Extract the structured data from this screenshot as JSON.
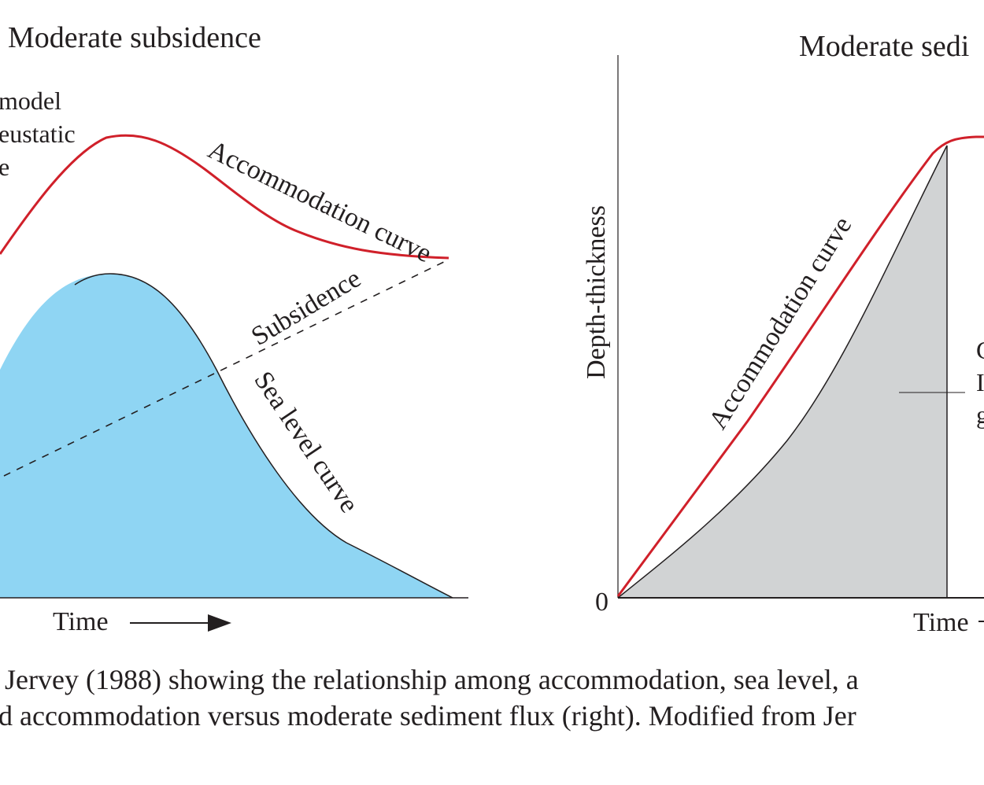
{
  "left_panel": {
    "title": "Moderate subsidence",
    "model_label_lines": [
      "model",
      "eustatic",
      "e"
    ],
    "accommodation_label": "Accommodation curve",
    "subsidence_label": "Subsidence",
    "sea_level_label": "Sea level curve",
    "time_label": "Time"
  },
  "right_panel": {
    "title": "Moderate sedi",
    "y_axis_label": "Depth-thickness",
    "origin_label": "0",
    "accommodation_label": "Accommodation curve",
    "time_label": "Time",
    "cut_label_lines": [
      "C",
      "I",
      "g"
    ]
  },
  "caption": {
    "line1": "Jervey (1988) showing the relationship among accommodation, sea level, a",
    "line2": "d accommodation versus moderate sediment flux (right). Modified from Jer"
  },
  "colors": {
    "accommodation_curve": "#d0202a",
    "sea_level_fill": "#8fd5f3",
    "sediment_fill": "#d1d3d4",
    "line": "#231f20"
  }
}
